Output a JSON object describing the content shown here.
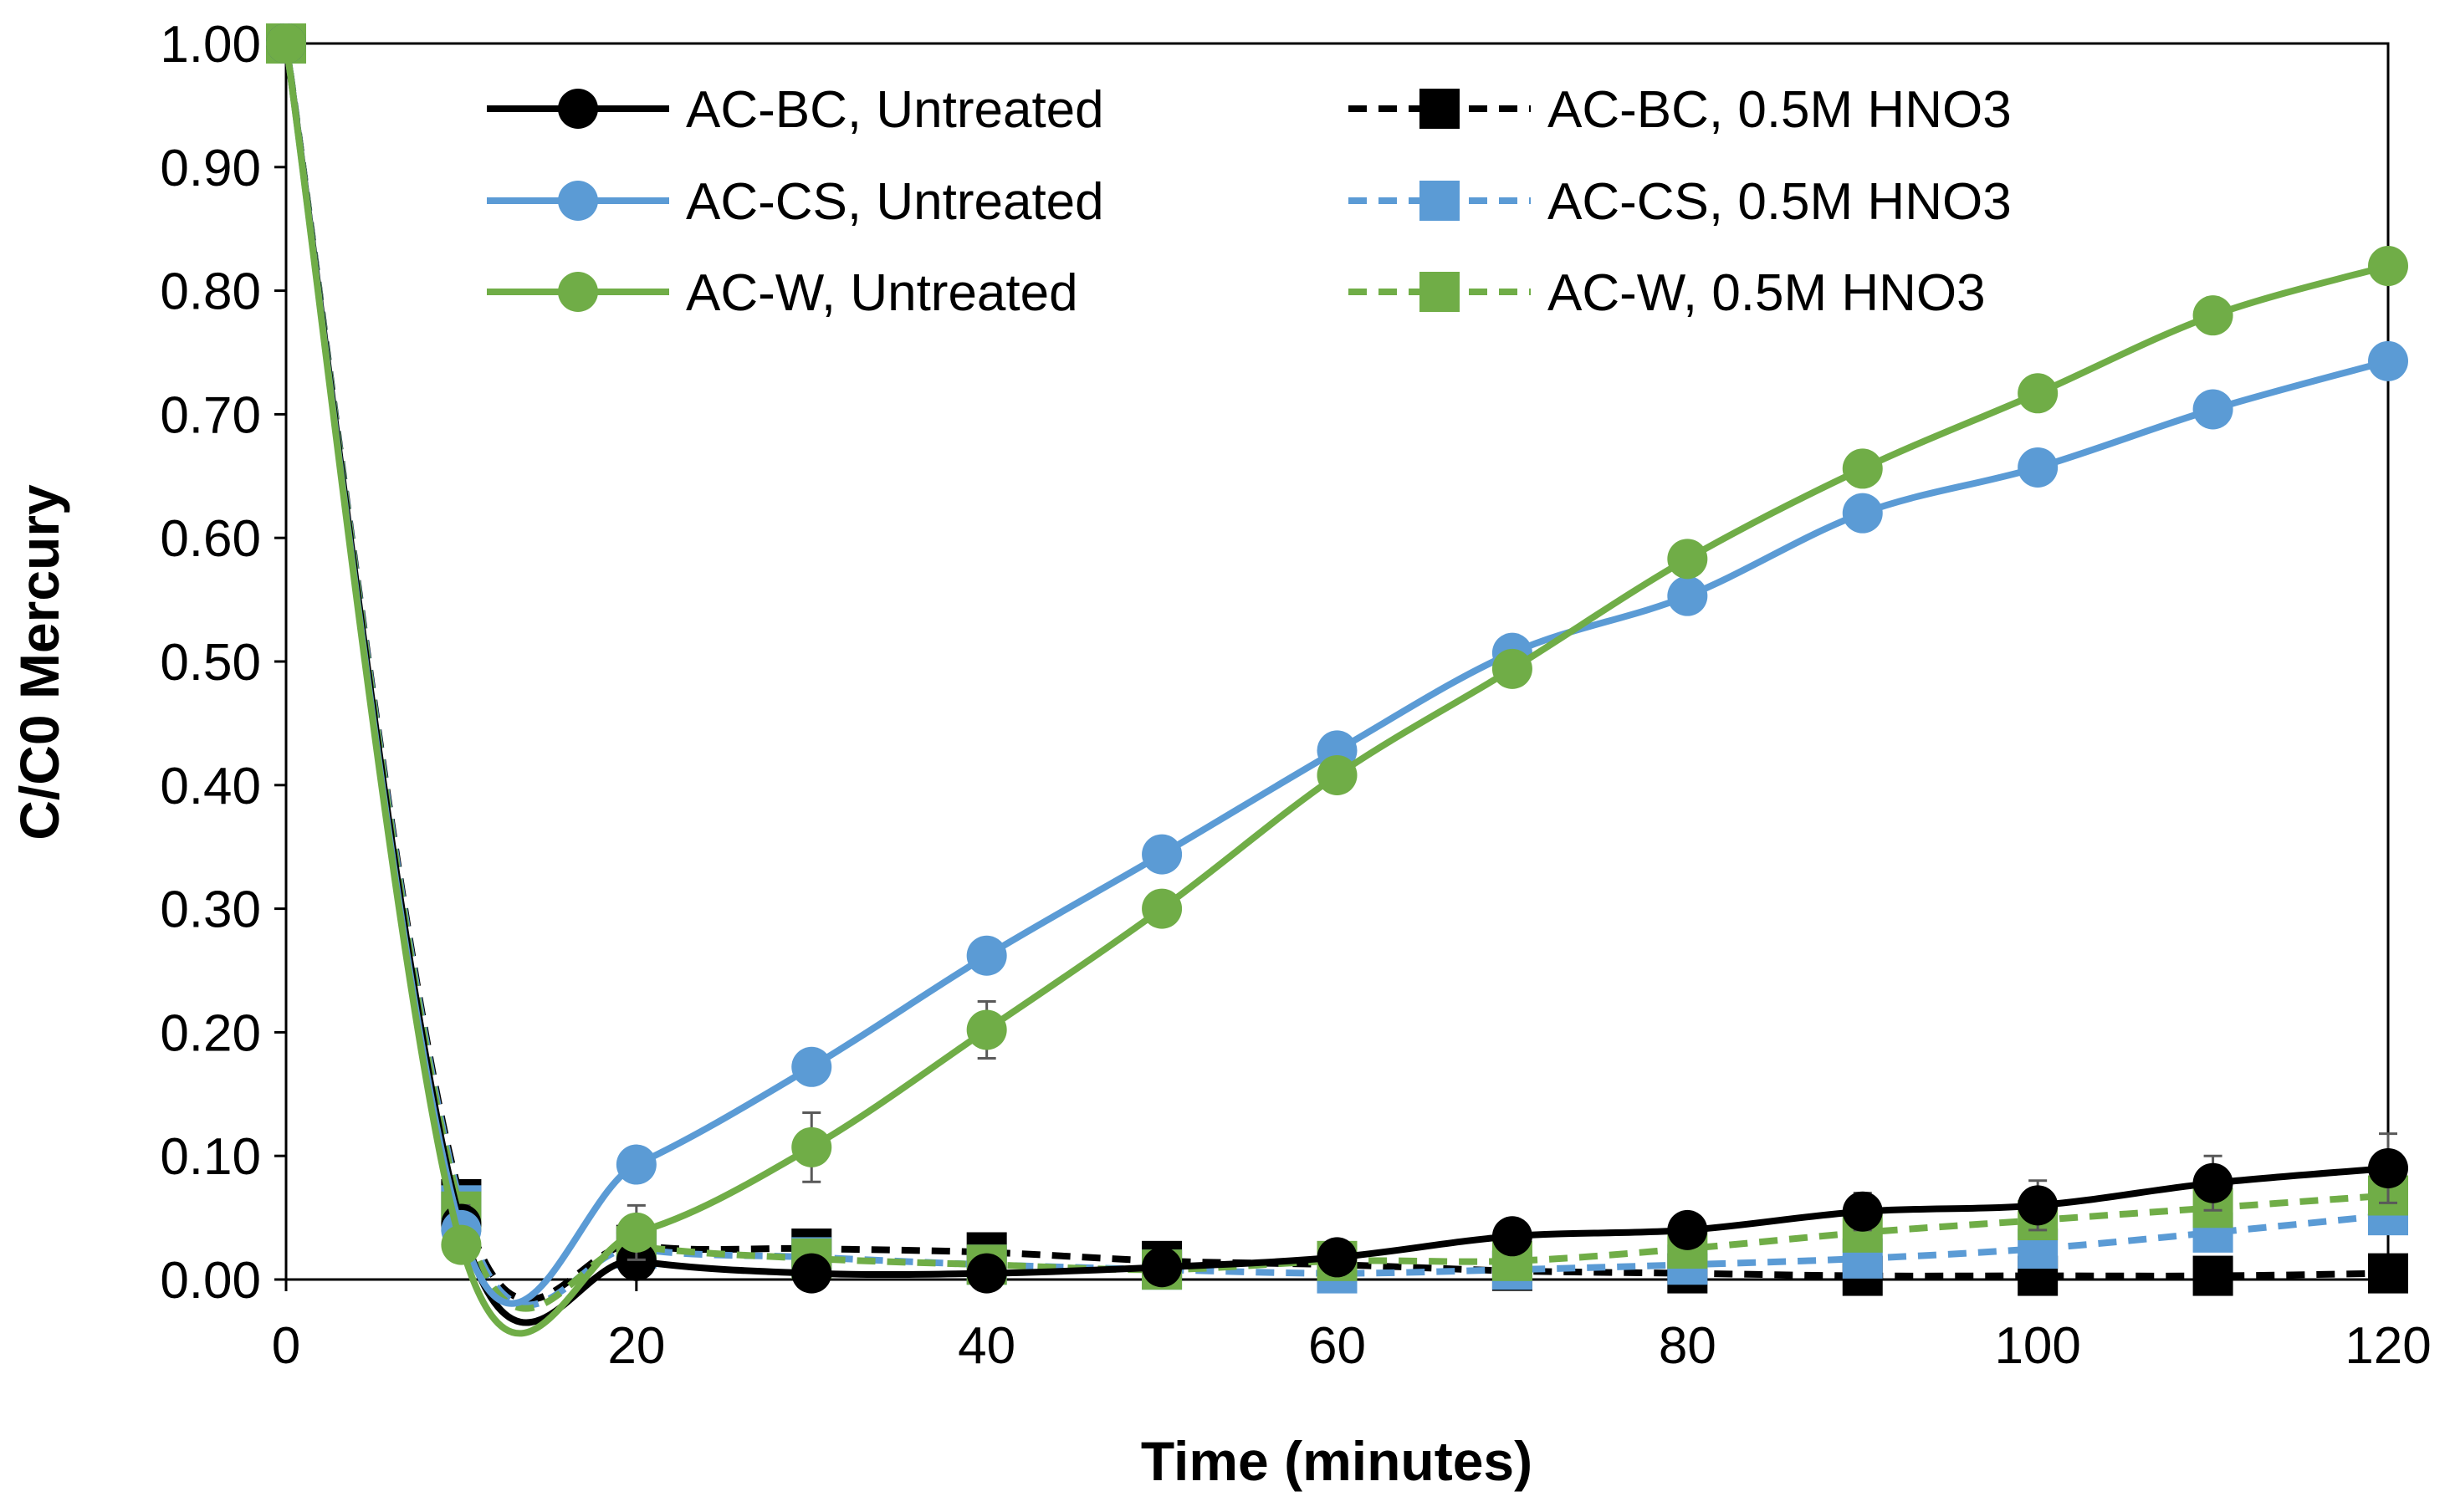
{
  "chart_data": {
    "type": "line",
    "title": "",
    "xlabel": "Time (minutes)",
    "ylabel": "C/C0 Mercury",
    "xlim": [
      0,
      120
    ],
    "ylim": [
      0,
      1.0
    ],
    "x_ticks": [
      0,
      20,
      40,
      60,
      80,
      100,
      120
    ],
    "x_tick_labels": [
      "0",
      "20",
      "40",
      "60",
      "80",
      "100",
      "120"
    ],
    "y_ticks": [
      0,
      0.1,
      0.2,
      0.3,
      0.4,
      0.5,
      0.6,
      0.7,
      0.8,
      0.9,
      1.0
    ],
    "y_tick_labels": [
      "0.00",
      "0.10",
      "0.20",
      "0.30",
      "0.40",
      "0.50",
      "0.60",
      "0.70",
      "0.80",
      "0.90",
      "1.00"
    ],
    "grid": false,
    "legend_position": "top",
    "x": [
      0,
      10,
      20,
      30,
      40,
      50,
      60,
      70,
      80,
      90,
      100,
      110,
      120
    ],
    "series": [
      {
        "name": "AC-BC, Untreated",
        "color": "#000000",
        "dash": "solid",
        "marker": "circle",
        "values": [
          1.0,
          0.045,
          0.015,
          0.005,
          0.005,
          0.01,
          0.018,
          0.035,
          0.04,
          0.055,
          0.06,
          0.078,
          0.09
        ],
        "errors": [
          0,
          0.015,
          0.005,
          0.005,
          0.003,
          0.003,
          0.003,
          0.008,
          0.008,
          0.015,
          0.02,
          0.022,
          0.028
        ]
      },
      {
        "name": "AC-CS, Untreated",
        "color": "#5B9BD5",
        "dash": "solid",
        "marker": "circle",
        "values": [
          1.0,
          0.04,
          0.093,
          0.172,
          0.262,
          0.344,
          0.428,
          0.507,
          0.553,
          0.62,
          0.657,
          0.704,
          0.743
        ],
        "errors": [
          0,
          0,
          0,
          0,
          0,
          0,
          0,
          0,
          0,
          0,
          0,
          0,
          0
        ]
      },
      {
        "name": "AC-W, Untreated",
        "color": "#70AD47",
        "dash": "solid",
        "marker": "circle",
        "values": [
          1.0,
          0.028,
          0.038,
          0.107,
          0.202,
          0.3,
          0.408,
          0.494,
          0.583,
          0.656,
          0.717,
          0.78,
          0.82
        ],
        "errors": [
          0,
          0,
          0.022,
          0.028,
          0.023,
          0,
          0,
          0,
          0,
          0,
          0,
          0,
          0
        ]
      },
      {
        "name": "AC-BC, 0.5M HNO3",
        "color": "#000000",
        "dash": "dashed",
        "marker": "square",
        "values": [
          1.0,
          0.065,
          0.028,
          0.025,
          0.022,
          0.015,
          0.012,
          0.007,
          0.005,
          0.003,
          0.003,
          0.003,
          0.005
        ],
        "errors": [
          0,
          0.01,
          0.008,
          0.008,
          0.005,
          0.005,
          0.003,
          0.003,
          0.003,
          0.003,
          0.003,
          0.003,
          0.003
        ]
      },
      {
        "name": "AC-CS, 0.5M HNO3",
        "color": "#5B9BD5",
        "dash": "dashed",
        "marker": "square",
        "values": [
          1.0,
          0.06,
          0.025,
          0.018,
          0.012,
          0.008,
          0.005,
          0.008,
          0.012,
          0.017,
          0.025,
          0.038,
          0.052
        ],
        "errors": [
          0,
          0.008,
          0.005,
          0.005,
          0.003,
          0.003,
          0.003,
          0.003,
          0.003,
          0.005,
          0.005,
          0.006,
          0.008
        ]
      },
      {
        "name": "AC-W, 0.5M HNO3",
        "color": "#70AD47",
        "dash": "dashed",
        "marker": "square",
        "values": [
          1.0,
          0.055,
          0.027,
          0.017,
          0.012,
          0.008,
          0.015,
          0.015,
          0.025,
          0.038,
          0.048,
          0.058,
          0.068
        ],
        "errors": [
          0,
          0.01,
          0.005,
          0.005,
          0.005,
          0.003,
          0.003,
          0.005,
          0.005,
          0.008,
          0.01,
          0.01,
          0.012
        ]
      }
    ]
  }
}
